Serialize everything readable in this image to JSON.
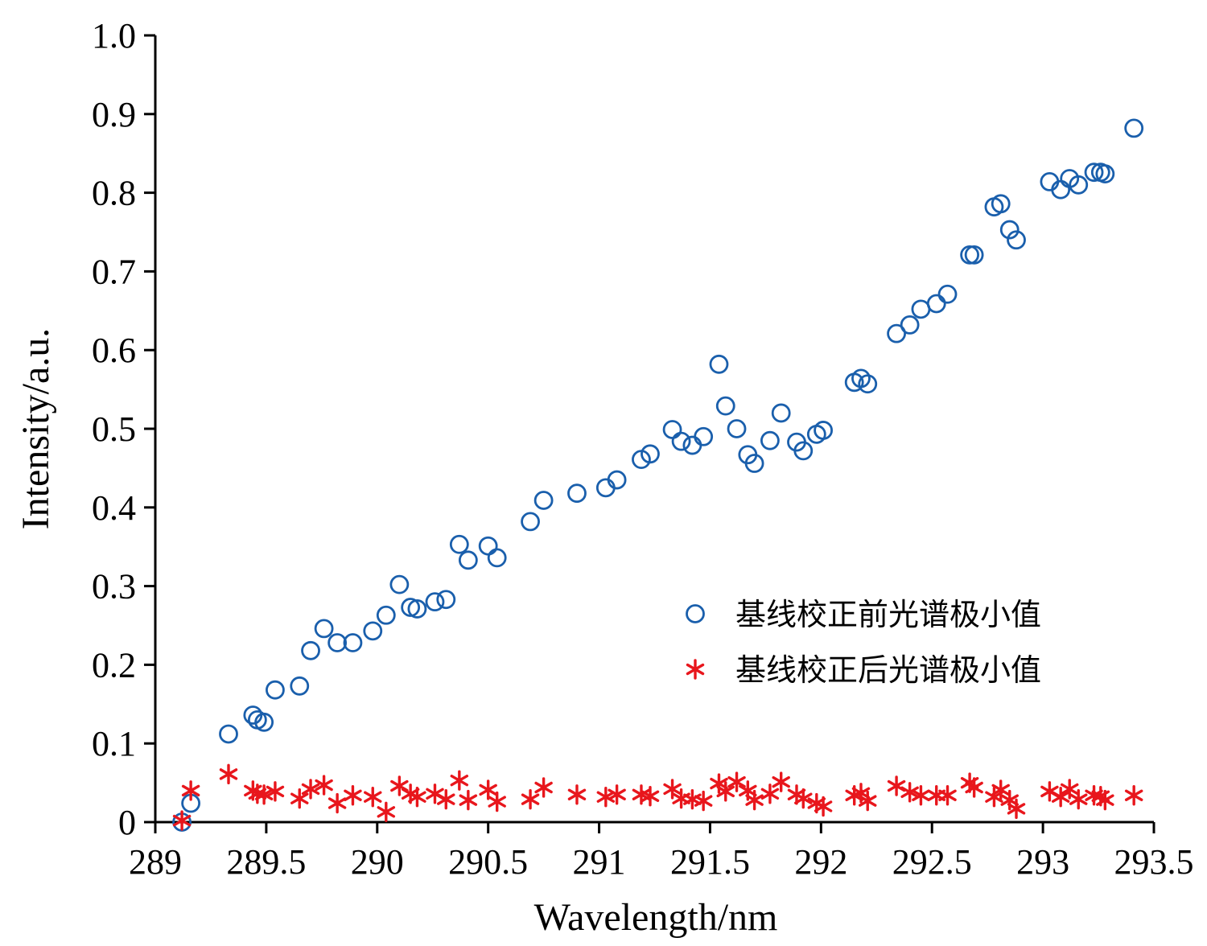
{
  "chart_data": {
    "type": "scatter",
    "xlabel": "Wavelength/nm",
    "ylabel": "Intensity/a.u.",
    "xlim": [
      289,
      293.5
    ],
    "ylim": [
      0,
      1.0
    ],
    "x_ticks": [
      "289",
      "289.5",
      "290",
      "290.5",
      "291",
      "291.5",
      "292",
      "292.5",
      "293",
      "293.5"
    ],
    "y_ticks": [
      "0",
      "0.1",
      "0.2",
      "0.3",
      "0.4",
      "0.5",
      "0.6",
      "0.7",
      "0.8",
      "0.9",
      "1.0"
    ],
    "grid": false,
    "legend_position": "right",
    "series": [
      {
        "name": "基线校正前光谱极小值",
        "marker": "circle",
        "color": "#1a5fac",
        "points": [
          [
            289.12,
            0.0
          ],
          [
            289.16,
            0.024
          ],
          [
            289.33,
            0.112
          ],
          [
            289.44,
            0.136
          ],
          [
            289.46,
            0.13
          ],
          [
            289.49,
            0.127
          ],
          [
            289.54,
            0.168
          ],
          [
            289.65,
            0.173
          ],
          [
            289.7,
            0.218
          ],
          [
            289.76,
            0.246
          ],
          [
            289.82,
            0.228
          ],
          [
            289.89,
            0.228
          ],
          [
            289.98,
            0.243
          ],
          [
            290.04,
            0.263
          ],
          [
            290.1,
            0.302
          ],
          [
            290.15,
            0.273
          ],
          [
            290.18,
            0.271
          ],
          [
            290.26,
            0.28
          ],
          [
            290.31,
            0.283
          ],
          [
            290.37,
            0.353
          ],
          [
            290.41,
            0.333
          ],
          [
            290.5,
            0.351
          ],
          [
            290.54,
            0.336
          ],
          [
            290.69,
            0.382
          ],
          [
            290.75,
            0.409
          ],
          [
            290.9,
            0.418
          ],
          [
            291.03,
            0.425
          ],
          [
            291.08,
            0.435
          ],
          [
            291.19,
            0.461
          ],
          [
            291.23,
            0.468
          ],
          [
            291.33,
            0.499
          ],
          [
            291.37,
            0.484
          ],
          [
            291.42,
            0.479
          ],
          [
            291.47,
            0.49
          ],
          [
            291.54,
            0.582
          ],
          [
            291.57,
            0.529
          ],
          [
            291.62,
            0.5
          ],
          [
            291.67,
            0.467
          ],
          [
            291.7,
            0.456
          ],
          [
            291.77,
            0.485
          ],
          [
            291.82,
            0.52
          ],
          [
            291.89,
            0.483
          ],
          [
            291.92,
            0.472
          ],
          [
            291.98,
            0.493
          ],
          [
            292.01,
            0.498
          ],
          [
            292.15,
            0.559
          ],
          [
            292.18,
            0.564
          ],
          [
            292.21,
            0.557
          ],
          [
            292.34,
            0.621
          ],
          [
            292.4,
            0.632
          ],
          [
            292.45,
            0.652
          ],
          [
            292.52,
            0.659
          ],
          [
            292.57,
            0.671
          ],
          [
            292.67,
            0.721
          ],
          [
            292.69,
            0.721
          ],
          [
            292.78,
            0.782
          ],
          [
            292.81,
            0.786
          ],
          [
            292.85,
            0.753
          ],
          [
            292.88,
            0.74
          ],
          [
            293.03,
            0.814
          ],
          [
            293.08,
            0.804
          ],
          [
            293.12,
            0.818
          ],
          [
            293.16,
            0.81
          ],
          [
            293.23,
            0.826
          ],
          [
            293.26,
            0.826
          ],
          [
            293.28,
            0.824
          ],
          [
            293.41,
            0.882
          ]
        ]
      },
      {
        "name": "基线校正后光谱极小值",
        "marker": "asterisk",
        "color": "#e8161c",
        "points": [
          [
            289.12,
            0.002
          ],
          [
            289.16,
            0.04
          ],
          [
            289.33,
            0.061
          ],
          [
            289.44,
            0.04
          ],
          [
            289.46,
            0.036
          ],
          [
            289.49,
            0.035
          ],
          [
            289.54,
            0.039
          ],
          [
            289.65,
            0.03
          ],
          [
            289.7,
            0.042
          ],
          [
            289.76,
            0.047
          ],
          [
            289.82,
            0.024
          ],
          [
            289.89,
            0.034
          ],
          [
            289.98,
            0.032
          ],
          [
            290.04,
            0.013
          ],
          [
            290.1,
            0.046
          ],
          [
            290.15,
            0.036
          ],
          [
            290.18,
            0.032
          ],
          [
            290.26,
            0.036
          ],
          [
            290.31,
            0.029
          ],
          [
            290.37,
            0.053
          ],
          [
            290.41,
            0.028
          ],
          [
            290.5,
            0.041
          ],
          [
            290.54,
            0.026
          ],
          [
            290.69,
            0.029
          ],
          [
            290.75,
            0.044
          ],
          [
            290.9,
            0.035
          ],
          [
            291.03,
            0.032
          ],
          [
            291.08,
            0.035
          ],
          [
            291.19,
            0.035
          ],
          [
            291.23,
            0.033
          ],
          [
            291.33,
            0.042
          ],
          [
            291.37,
            0.03
          ],
          [
            291.42,
            0.029
          ],
          [
            291.47,
            0.027
          ],
          [
            291.54,
            0.049
          ],
          [
            291.57,
            0.039
          ],
          [
            291.62,
            0.051
          ],
          [
            291.67,
            0.04
          ],
          [
            291.7,
            0.028
          ],
          [
            291.77,
            0.036
          ],
          [
            291.82,
            0.051
          ],
          [
            291.89,
            0.035
          ],
          [
            291.92,
            0.03
          ],
          [
            291.98,
            0.024
          ],
          [
            292.01,
            0.02
          ],
          [
            292.15,
            0.034
          ],
          [
            292.18,
            0.037
          ],
          [
            292.21,
            0.027
          ],
          [
            292.34,
            0.046
          ],
          [
            292.4,
            0.038
          ],
          [
            292.45,
            0.034
          ],
          [
            292.52,
            0.034
          ],
          [
            292.57,
            0.034
          ],
          [
            292.67,
            0.05
          ],
          [
            292.69,
            0.044
          ],
          [
            292.78,
            0.032
          ],
          [
            292.81,
            0.041
          ],
          [
            292.85,
            0.028
          ],
          [
            292.88,
            0.017
          ],
          [
            293.03,
            0.039
          ],
          [
            293.08,
            0.032
          ],
          [
            293.12,
            0.042
          ],
          [
            293.16,
            0.029
          ],
          [
            293.23,
            0.034
          ],
          [
            293.26,
            0.033
          ],
          [
            293.28,
            0.028
          ],
          [
            293.41,
            0.034
          ]
        ]
      }
    ]
  }
}
